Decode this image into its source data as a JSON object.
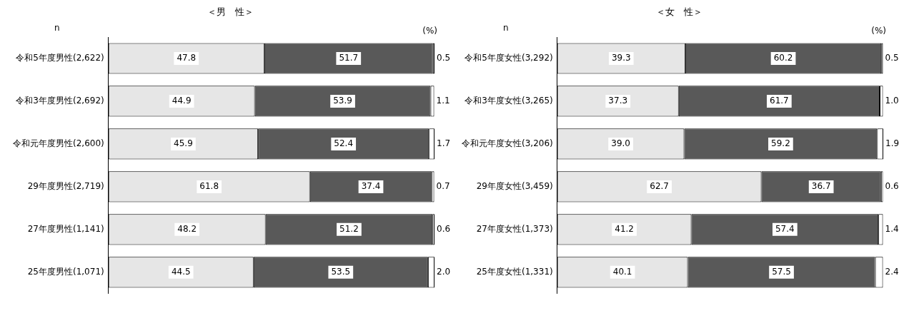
{
  "chart_data": [
    {
      "type": "bar",
      "orientation": "horizontal",
      "stacked": true,
      "title": "＜男　性＞",
      "annotations": [
        "n",
        "(%)"
      ],
      "grid": false,
      "legend": false,
      "categories": [
        "令和5年度男性(2,622)",
        "令和3年度男性(2,692)",
        "令和元年度男性(2,600)",
        "29年度男性(2,719)",
        "27年度男性(1,141)",
        "25年度男性(1,071)"
      ],
      "series": [
        {
          "color": "#e6e6e6",
          "values": [
            47.8,
            44.9,
            45.9,
            61.8,
            48.2,
            44.5
          ],
          "value_labels": [
            "47.8",
            "44.9",
            "45.9",
            "61.8",
            "48.2",
            "44.5"
          ]
        },
        {
          "color": "#595959",
          "values": [
            51.7,
            53.9,
            52.4,
            37.4,
            51.2,
            53.5
          ],
          "value_labels": [
            "51.7",
            "53.9",
            "52.4",
            "37.4",
            "51.2",
            "53.5"
          ]
        },
        {
          "color": "#ffffff",
          "values": [
            0.5,
            1.1,
            1.7,
            0.7,
            0.6,
            2.0
          ],
          "value_labels": [
            "0.5",
            "1.1",
            "1.7",
            "0.7",
            "0.6",
            "2.0"
          ]
        }
      ]
    },
    {
      "type": "bar",
      "orientation": "horizontal",
      "stacked": true,
      "title": "＜女　性＞",
      "annotations": [
        "n",
        "(%)"
      ],
      "grid": false,
      "legend": false,
      "categories": [
        "令和5年度女性(3,292)",
        "令和3年度女性(3,265)",
        "令和元年度女性(3,206)",
        "29年度女性(3,459)",
        "27年度女性(1,373)",
        "25年度女性(1,331)"
      ],
      "series": [
        {
          "color": "#e6e6e6",
          "values": [
            39.3,
            37.3,
            39.0,
            62.7,
            41.2,
            40.1
          ],
          "value_labels": [
            "39.3",
            "37.3",
            "39.0",
            "62.7",
            "41.2",
            "40.1"
          ]
        },
        {
          "color": "#595959",
          "values": [
            60.2,
            61.7,
            59.2,
            36.7,
            57.4,
            57.5
          ],
          "value_labels": [
            "60.2",
            "61.7",
            "59.2",
            "36.7",
            "57.4",
            "57.5"
          ]
        },
        {
          "color": "#ffffff",
          "values": [
            0.5,
            1.0,
            1.9,
            0.6,
            1.4,
            2.4
          ],
          "value_labels": [
            "0.5",
            "1.0",
            "1.9",
            "0.6",
            "1.4",
            "2.4"
          ]
        }
      ]
    }
  ]
}
